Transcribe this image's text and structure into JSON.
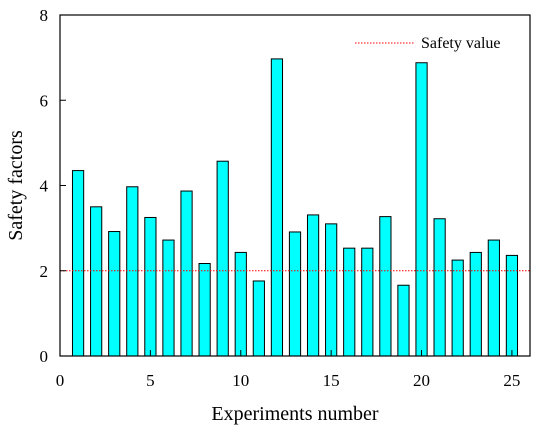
{
  "chart_data": {
    "type": "bar",
    "xlabel": "Experiments number",
    "ylabel": "Safety factors",
    "xlim": [
      0,
      26
    ],
    "ylim": [
      0,
      8
    ],
    "xticks": [
      0,
      5,
      10,
      15,
      20,
      25
    ],
    "yticks": [
      0,
      2,
      4,
      6,
      8
    ],
    "x": [
      1,
      2,
      3,
      4,
      5,
      6,
      7,
      8,
      9,
      10,
      11,
      12,
      13,
      14,
      15,
      16,
      17,
      18,
      19,
      20,
      21,
      22,
      23,
      24,
      25
    ],
    "series": [
      {
        "values": [
          4.35,
          3.5,
          2.92,
          3.97,
          3.25,
          2.72,
          3.87,
          2.17,
          4.57,
          2.43,
          1.76,
          6.97,
          2.91,
          3.31,
          3.1,
          2.53,
          2.53,
          3.27,
          1.66,
          6.88,
          3.22,
          2.25,
          2.43,
          2.72,
          2.36
        ],
        "color": "#00ffff"
      }
    ],
    "reference_line": {
      "name": "Safety value",
      "y": 2,
      "color": "#ff0000",
      "style": "dotted"
    },
    "legend": {
      "position": "top-right",
      "entries": [
        "Safety value"
      ]
    },
    "grid": false
  }
}
